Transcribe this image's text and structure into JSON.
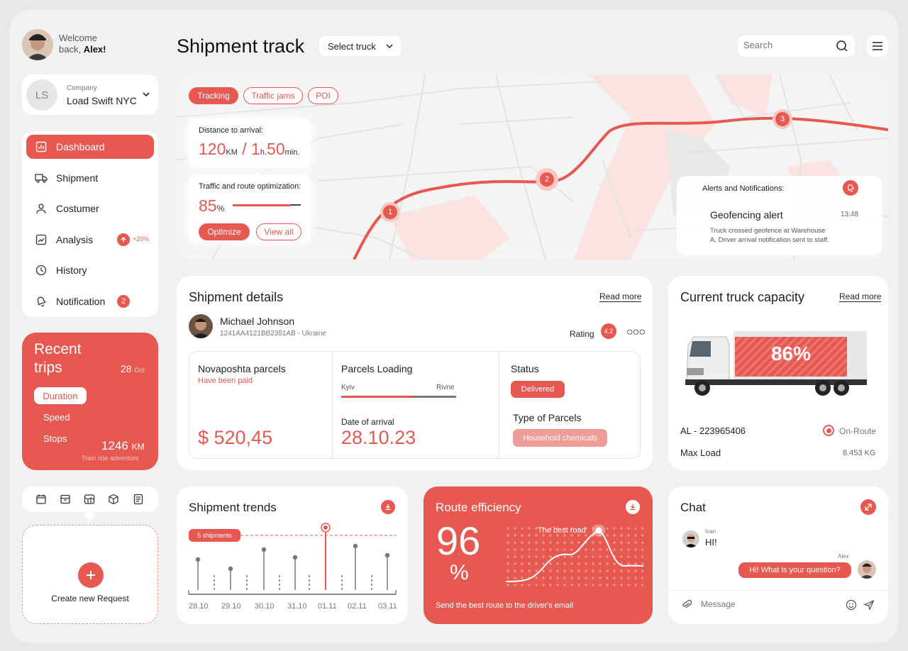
{
  "user": {
    "welcome": "Welcome",
    "back": "back,",
    "name": "Alex!"
  },
  "company": {
    "initials": "LS",
    "label": "Company",
    "name": "Load Swift NYC"
  },
  "nav": [
    {
      "label": "Dashboard",
      "icon": "bar-chart-icon",
      "active": true
    },
    {
      "label": "Shipment",
      "icon": "truck-icon"
    },
    {
      "label": "Costumer",
      "icon": "person-icon"
    },
    {
      "label": "Analysis",
      "icon": "trend-icon",
      "badge": "+20%"
    },
    {
      "label": "History",
      "icon": "clock-icon"
    },
    {
      "label": "Notification",
      "icon": "bell-icon",
      "badge": "2"
    }
  ],
  "recent_trips": {
    "title_line1": "Recent",
    "title_line2": "trips",
    "day": "28",
    "month": "Oct",
    "tabs": [
      "Duration",
      "Speed",
      "Stops"
    ],
    "distance": "1246",
    "unit": "KM",
    "caption": "Train ride adventure"
  },
  "create_request": {
    "label": "Create new Request"
  },
  "header": {
    "title": "Shipment track",
    "select": "Select truck",
    "search_placeholder": "Search"
  },
  "map": {
    "tabs": [
      "Tracking",
      "Traffic jams",
      "POI"
    ],
    "distance_label": "Distance to arrival:",
    "distance_km": "120",
    "km_unit": "KM",
    "separator": " / ",
    "hours": "1",
    "h_unit": "h.",
    "minutes": "50",
    "min_unit": "min.",
    "traffic_label": "Traffic and route optimization:",
    "traffic_value": "85",
    "traffic_unit": "%",
    "traffic_fraction": 0.85,
    "optimize": "Optimize",
    "view_all": "View all",
    "markers": [
      "1",
      "2",
      "3"
    ],
    "alerts_label": "Alerts and Notifications:",
    "alert_title": "Geofencing alert",
    "alert_time": "13:48",
    "alert_line1": "Truck crossed geofence at Warehouse",
    "alert_line2": "A. Driver arrival notification sent to staff."
  },
  "shipment_details": {
    "title": "Shipment details",
    "read_more": "Read more",
    "person": "Michael Johnson",
    "id": "1241AA4121BB2351AB - Ukraine",
    "rating_label": "Rating",
    "rating": "4.2",
    "parcel_title": "Novaposhta parcels",
    "paid": "Have been paid",
    "amount": "$ 520,45",
    "loading_title": "Parcels Loading",
    "from": "Kyiv",
    "to": "Rivne",
    "loading_fraction": 0.62,
    "arrival_label": "Date of arrival",
    "arrival_date": "28.10.23",
    "status_label": "Status",
    "status": "Delivered",
    "type_label": "Type of Parcels",
    "type": "Household chemicals"
  },
  "capacity": {
    "title": "Current truck capacity",
    "read_more": "Read more",
    "percent": "86%",
    "truck_id": "AL - 223965406",
    "state": "On-Route",
    "max_label": "Max Load",
    "max_value": "8.453 KG"
  },
  "trends": {
    "title": "Shipment trends",
    "annotation": "5 shipments",
    "dates": [
      "28.10",
      "29.10",
      "30.10",
      "31.10",
      "01.11",
      "02.11",
      "03.11"
    ]
  },
  "route_eff": {
    "title": "Route efficiency",
    "value": "96",
    "unit": "%",
    "best": "The best road",
    "caption": "Send the best route to the driver's email"
  },
  "chat": {
    "title": "Chat",
    "sender1": "Ivan",
    "msg1": "HI!",
    "sender2": "Alex",
    "msg2": "Hi! What is your question?",
    "placeholder": "Message"
  },
  "colors": {
    "accent": "#e65850",
    "bg": "#f1f1f1"
  }
}
